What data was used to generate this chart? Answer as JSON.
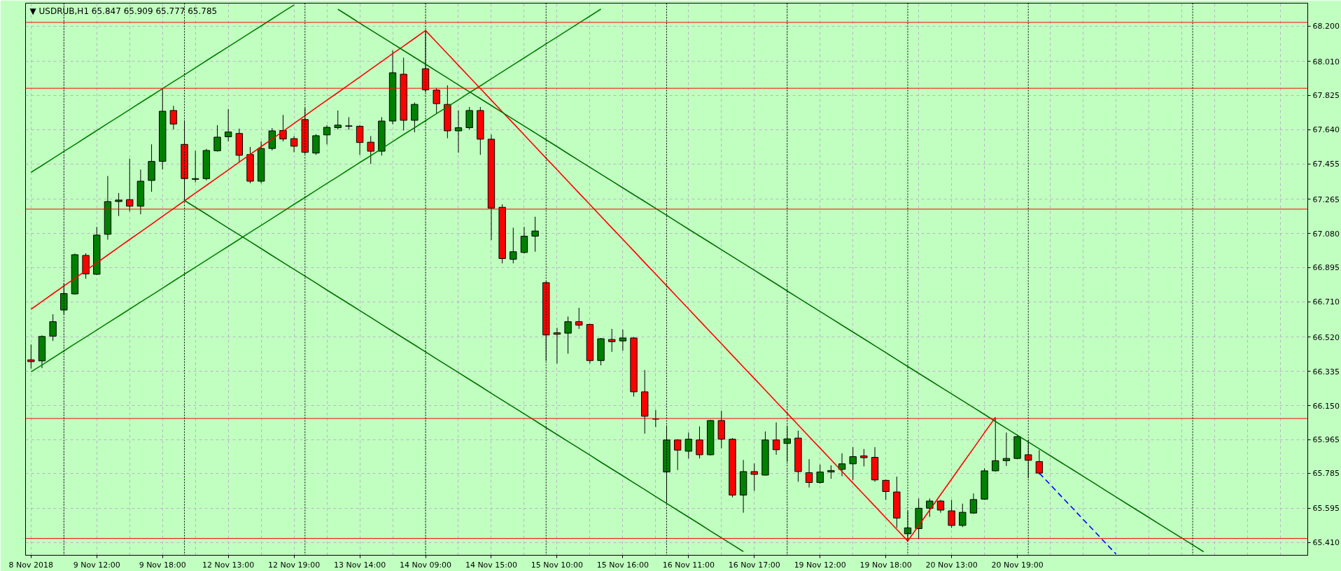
{
  "chart_data": {
    "type": "candlestick",
    "title": "▼ USDRUB,H1 65.847 65.909 65.777 65.785",
    "categories": [
      "8 Nov 2018",
      null,
      null,
      null,
      null,
      null,
      "9 Nov 12:00",
      null,
      null,
      null,
      null,
      null,
      "9 Nov 18:00",
      null,
      null,
      null,
      null,
      null,
      "12 Nov 13:00",
      null,
      null,
      null,
      null,
      null,
      "12 Nov 19:00",
      null,
      null,
      null,
      null,
      null,
      "13 Nov 14:00",
      null,
      null,
      null,
      null,
      null,
      "14 Nov 09:00",
      null,
      null,
      null,
      null,
      null,
      "14 Nov 15:00",
      null,
      null,
      null,
      null,
      null,
      "15 Nov 10:00",
      null,
      null,
      null,
      null,
      null,
      "15 Nov 16:00",
      null,
      null,
      null,
      null,
      null,
      "16 Nov 11:00",
      null,
      null,
      null,
      null,
      null,
      "16 Nov 17:00",
      null,
      null,
      null,
      null,
      null,
      "19 Nov 12:00",
      null,
      null,
      null,
      null,
      null,
      "19 Nov 18:00",
      null,
      null,
      null,
      null,
      null,
      "20 Nov 13:00",
      null,
      null,
      null,
      null,
      null,
      "20 Nov 19:00",
      null,
      null,
      null,
      null,
      null,
      null,
      null,
      null,
      null,
      null,
      null,
      null,
      null,
      null,
      null,
      null,
      null,
      null,
      null,
      null,
      null,
      null,
      null,
      null,
      null,
      null
    ],
    "ohlc": [
      [
        66.397,
        66.48,
        66.35,
        66.387
      ],
      [
        66.391,
        66.529,
        66.352,
        66.523
      ],
      [
        66.525,
        66.643,
        66.499,
        66.603
      ],
      [
        66.666,
        66.81,
        66.643,
        66.755
      ],
      [
        66.753,
        66.971,
        66.749,
        66.965
      ],
      [
        66.961,
        66.973,
        66.835,
        66.861
      ],
      [
        66.859,
        67.115,
        66.855,
        67.071
      ],
      [
        67.075,
        67.39,
        67.046,
        67.252
      ],
      [
        67.252,
        67.298,
        67.174,
        67.26
      ],
      [
        67.262,
        67.484,
        67.199,
        67.227
      ],
      [
        67.227,
        67.425,
        67.183,
        67.362
      ],
      [
        67.366,
        67.561,
        67.305,
        67.469
      ],
      [
        67.469,
        67.862,
        67.425,
        67.74
      ],
      [
        67.744,
        67.769,
        67.642,
        67.671
      ],
      [
        67.561,
        67.691,
        67.258,
        67.376
      ],
      [
        67.372,
        67.526,
        67.356,
        67.376
      ],
      [
        67.376,
        67.537,
        67.366,
        67.528
      ],
      [
        67.526,
        67.665,
        67.522,
        67.6
      ],
      [
        67.602,
        67.752,
        67.577,
        67.628
      ],
      [
        67.62,
        67.646,
        67.463,
        67.502
      ],
      [
        67.506,
        67.547,
        67.351,
        67.362
      ],
      [
        67.362,
        67.577,
        67.351,
        67.539
      ],
      [
        67.539,
        67.649,
        67.528,
        67.634
      ],
      [
        67.636,
        67.72,
        67.577,
        67.59
      ],
      [
        67.592,
        67.606,
        67.518,
        67.551
      ],
      [
        67.695,
        67.758,
        67.508,
        67.518
      ],
      [
        67.514,
        67.616,
        67.504,
        67.608
      ],
      [
        67.612,
        67.665,
        67.561,
        67.653
      ],
      [
        67.651,
        67.744,
        67.642,
        67.665
      ],
      [
        67.659,
        67.708,
        67.64,
        67.661
      ],
      [
        67.659,
        67.665,
        67.504,
        67.571
      ],
      [
        67.573,
        67.606,
        67.455,
        67.524
      ],
      [
        67.524,
        67.708,
        67.5,
        67.687
      ],
      [
        67.687,
        68.068,
        67.669,
        67.948
      ],
      [
        67.94,
        68.029,
        67.636,
        67.691
      ],
      [
        67.691,
        67.787,
        67.626,
        67.777
      ],
      [
        67.97,
        68.176,
        67.842,
        67.856
      ],
      [
        67.854,
        67.866,
        67.728,
        67.781
      ],
      [
        67.777,
        67.88,
        67.594,
        67.634
      ],
      [
        67.634,
        67.744,
        67.516,
        67.651
      ],
      [
        67.651,
        67.763,
        67.642,
        67.744
      ],
      [
        67.744,
        67.763,
        67.504,
        67.589
      ],
      [
        67.589,
        67.614,
        67.044,
        67.217
      ],
      [
        67.221,
        67.237,
        66.918,
        66.944
      ],
      [
        66.94,
        67.111,
        66.918,
        66.981
      ],
      [
        66.977,
        67.115,
        66.971,
        67.065
      ],
      [
        67.065,
        67.17,
        66.981,
        67.093
      ],
      [
        66.814,
        66.82,
        66.391,
        66.531
      ],
      [
        66.543,
        66.57,
        66.377,
        66.535
      ],
      [
        66.541,
        66.631,
        66.43,
        66.603
      ],
      [
        66.603,
        66.678,
        66.564,
        66.584
      ],
      [
        66.588,
        66.592,
        66.377,
        66.393
      ],
      [
        66.393,
        66.515,
        66.367,
        66.511
      ],
      [
        66.507,
        66.564,
        66.44,
        66.495
      ],
      [
        66.499,
        66.56,
        66.446,
        66.515
      ],
      [
        66.515,
        66.521,
        66.198,
        66.224
      ],
      [
        66.224,
        66.342,
        65.998,
        66.092
      ],
      [
        66.077,
        66.126,
        66.033,
        66.077
      ],
      [
        65.791,
        66.043,
        65.62,
        65.964
      ],
      [
        65.964,
        65.968,
        65.801,
        65.909
      ],
      [
        65.903,
        66.004,
        65.864,
        65.968
      ],
      [
        65.964,
        66.037,
        65.864,
        65.884
      ],
      [
        65.884,
        66.073,
        65.88,
        66.069
      ],
      [
        66.069,
        66.122,
        65.919,
        65.968
      ],
      [
        65.968,
        65.974,
        65.654,
        65.666
      ],
      [
        65.666,
        65.856,
        65.571,
        65.793
      ],
      [
        65.793,
        65.837,
        65.689,
        65.778
      ],
      [
        65.774,
        66.01,
        65.772,
        65.964
      ],
      [
        65.964,
        66.059,
        65.884,
        65.911
      ],
      [
        65.945,
        66.039,
        65.846,
        65.97
      ],
      [
        65.974,
        66.014,
        65.738,
        65.793
      ],
      [
        65.787,
        65.86,
        65.707,
        65.734
      ],
      [
        65.734,
        65.831,
        65.728,
        65.791
      ],
      [
        65.791,
        65.827,
        65.754,
        65.799
      ],
      [
        65.805,
        65.892,
        65.768,
        65.835
      ],
      [
        65.835,
        65.925,
        65.748,
        65.874
      ],
      [
        65.878,
        65.915,
        65.821,
        65.868
      ],
      [
        65.87,
        65.925,
        65.738,
        65.748
      ],
      [
        65.746,
        65.75,
        65.64,
        65.685
      ],
      [
        65.683,
        65.766,
        65.489,
        65.542
      ],
      [
        65.457,
        65.581,
        65.418,
        65.489
      ],
      [
        65.485,
        65.648,
        65.428,
        65.595
      ],
      [
        65.595,
        65.648,
        65.548,
        65.634
      ],
      [
        65.634,
        65.64,
        65.571,
        65.585
      ],
      [
        65.581,
        65.64,
        65.489,
        65.502
      ],
      [
        65.502,
        65.62,
        65.493,
        65.573
      ],
      [
        65.569,
        65.675,
        65.565,
        65.642
      ],
      [
        65.644,
        65.811,
        65.64,
        65.797
      ],
      [
        65.797,
        66.086,
        65.793,
        65.852
      ],
      [
        65.852,
        66.004,
        65.823,
        65.864
      ],
      [
        65.864,
        65.994,
        65.86,
        65.982
      ],
      [
        65.884,
        65.964,
        65.758,
        65.854
      ],
      [
        65.847,
        65.909,
        65.777,
        65.785
      ],
      null,
      null,
      null,
      null,
      null,
      null,
      null,
      null,
      null,
      null,
      null,
      null,
      null,
      null,
      null,
      null,
      null,
      null,
      null,
      null,
      null,
      null,
      null,
      null
    ],
    "colors": [
      "#ff0000",
      "#008000",
      "#008000",
      "#008000",
      "#008000",
      "#ff0000",
      "#008000",
      "#008000",
      "#008000",
      "#ff0000",
      "#008000",
      "#008000",
      "#008000",
      "#ff0000",
      "#ff0000",
      "#008000",
      "#008000",
      "#008000",
      "#008000",
      "#ff0000",
      "#ff0000",
      "#008000",
      "#008000",
      "#ff0000",
      "#ff0000",
      "#ff0000",
      "#008000",
      "#008000",
      "#008000",
      "#008000",
      "#ff0000",
      "#ff0000",
      "#008000",
      "#008000",
      "#ff0000",
      "#008000",
      "#ff0000",
      "#ff0000",
      "#ff0000",
      "#008000",
      "#008000",
      "#ff0000",
      "#ff0000",
      "#ff0000",
      "#008000",
      "#008000",
      "#008000",
      "#ff0000",
      "#ff0000",
      "#008000",
      "#ff0000",
      "#ff0000",
      "#008000",
      "#ff0000",
      "#008000",
      "#ff0000",
      "#ff0000",
      "#000000",
      "#008000",
      "#ff0000",
      "#008000",
      "#ff0000",
      "#008000",
      "#ff0000",
      "#ff0000",
      "#008000",
      "#ff0000",
      "#008000",
      "#ff0000",
      "#008000",
      "#ff0000",
      "#ff0000",
      "#008000",
      "#008000",
      "#008000",
      "#008000",
      "#ff0000",
      "#ff0000",
      "#ff0000",
      "#ff0000",
      "#008000",
      "#008000",
      "#008000",
      "#ff0000",
      "#ff0000",
      "#008000",
      "#008000",
      "#008000",
      "#008000",
      "#008000",
      "#008000",
      "#ff0000",
      "#ff0000",
      null,
      null,
      null,
      null,
      null,
      null,
      null,
      null,
      null,
      null,
      null,
      null,
      null,
      null,
      null,
      null,
      null,
      null,
      null,
      null,
      null,
      null,
      null,
      null
    ],
    "series": [
      {
        "type": "line",
        "color": "#008000",
        "values": [
          67.41,
          67.447,
          67.485,
          67.523,
          67.56,
          67.598,
          67.636,
          67.674,
          67.711,
          67.749,
          67.787,
          67.824,
          67.862,
          67.9,
          67.937,
          67.975,
          68.013,
          68.051,
          68.088,
          68.126,
          68.164,
          68.201,
          68.239,
          68.277,
          68.314,
          null,
          null,
          null,
          null,
          null,
          null,
          null,
          null,
          null,
          null,
          null,
          null,
          null,
          null,
          null,
          null,
          null,
          null,
          null,
          null,
          null,
          null,
          null,
          null,
          null,
          null,
          null,
          null,
          null,
          null,
          null,
          null,
          null,
          null,
          null,
          null,
          null,
          null,
          null,
          null,
          null,
          null,
          null,
          null,
          null,
          null,
          null,
          null,
          null,
          null,
          null,
          null,
          null,
          null,
          null,
          null,
          null,
          null,
          null,
          null,
          null,
          null,
          null,
          null,
          null,
          null,
          null,
          null,
          null,
          null,
          null,
          null,
          null,
          null,
          null,
          null,
          null,
          null,
          null,
          null,
          null,
          null,
          null,
          null,
          null,
          null,
          null,
          null,
          null,
          null,
          null,
          null
        ]
      },
      {
        "type": "line",
        "color": "#008000",
        "values": [
          66.332,
          66.369,
          66.407,
          66.445,
          66.483,
          66.52,
          66.558,
          66.596,
          66.633,
          66.671,
          66.709,
          66.746,
          66.784,
          66.822,
          66.86,
          66.897,
          66.935,
          66.973,
          67.01,
          67.048,
          67.086,
          67.123,
          67.161,
          67.199,
          67.237,
          67.274,
          67.312,
          67.35,
          67.387,
          67.425,
          67.463,
          67.5,
          67.538,
          67.576,
          67.614,
          67.651,
          67.689,
          67.727,
          67.764,
          67.802,
          67.84,
          67.877,
          67.915,
          67.953,
          67.991,
          68.028,
          68.066,
          68.104,
          68.141,
          68.179,
          68.217,
          68.254,
          68.292,
          null,
          null,
          null,
          null,
          null,
          null,
          null,
          null,
          null,
          null,
          null,
          null,
          null,
          null,
          null,
          null,
          null,
          null,
          null,
          null,
          null,
          null,
          null,
          null,
          null,
          null,
          null,
          null,
          null,
          null,
          null,
          null,
          null,
          null,
          null,
          null,
          null,
          null,
          null,
          null,
          null,
          null,
          null,
          null,
          null,
          null,
          null,
          null,
          null,
          null,
          null,
          null,
          null,
          null,
          null,
          null,
          null,
          null,
          null,
          null,
          null,
          null,
          null,
          null
        ]
      },
      {
        "type": "line",
        "color": "#ff0000",
        "values": [
          66.67,
          66.712,
          66.754,
          66.796,
          66.837,
          66.879,
          66.921,
          66.963,
          67.005,
          67.047,
          67.088,
          67.13,
          67.172,
          67.214,
          67.256,
          67.298,
          67.339,
          67.381,
          67.423,
          67.465,
          67.507,
          67.549,
          67.59,
          67.632,
          67.674,
          67.716,
          67.758,
          67.8,
          67.841,
          67.883,
          67.925,
          67.967,
          68.009,
          68.051,
          68.092,
          68.134,
          68.176,
          68.113,
          68.051,
          67.988,
          67.925,
          67.863,
          67.8,
          67.737,
          67.675,
          67.612,
          67.549,
          67.486,
          67.424,
          67.361,
          67.298,
          67.236,
          67.173,
          67.11,
          67.048,
          66.985,
          66.922,
          66.86,
          66.797,
          66.734,
          66.672,
          66.609,
          66.546,
          66.484,
          66.421,
          66.358,
          66.296,
          66.233,
          66.17,
          66.108,
          66.045,
          65.982,
          65.92,
          65.857,
          65.794,
          65.731,
          65.669,
          65.606,
          65.543,
          65.481,
          65.418,
          65.502,
          65.585,
          65.669,
          65.752,
          65.836,
          65.919,
          66.003,
          66.086,
          null,
          null,
          null,
          null,
          null,
          null,
          null,
          null,
          null,
          null,
          null,
          null,
          null,
          null,
          null,
          null,
          null,
          null,
          null,
          null,
          null,
          null,
          null,
          null,
          null,
          null,
          null,
          null
        ]
      },
      {
        "type": "line",
        "color": "#007000",
        "values": [
          null,
          null,
          null,
          null,
          null,
          null,
          null,
          null,
          null,
          null,
          null,
          null,
          null,
          null,
          null,
          null,
          null,
          null,
          null,
          null,
          null,
          null,
          null,
          null,
          null,
          null,
          null,
          null,
          68.291,
          68.254,
          68.216,
          68.179,
          68.142,
          68.105,
          68.068,
          68.031,
          67.994,
          67.957,
          67.92,
          67.882,
          67.845,
          67.808,
          67.771,
          67.734,
          67.697,
          67.66,
          67.623,
          67.586,
          67.549,
          67.511,
          67.474,
          67.437,
          67.4,
          67.363,
          67.326,
          67.289,
          67.252,
          67.215,
          67.178,
          67.14,
          67.103,
          67.066,
          67.029,
          66.992,
          66.955,
          66.918,
          66.881,
          66.844,
          66.807,
          66.769,
          66.732,
          66.695,
          66.658,
          66.621,
          66.584,
          66.547,
          66.51,
          66.473,
          66.436,
          66.398,
          66.361,
          66.324,
          66.287,
          66.25,
          66.213,
          66.176,
          66.139,
          66.102,
          66.064,
          66.027,
          65.99,
          65.953,
          65.916,
          65.879,
          65.842,
          65.805,
          65.768,
          65.731,
          65.693,
          65.656,
          65.619,
          65.582,
          65.545,
          65.508,
          65.471,
          65.434,
          65.397,
          65.36,
          null,
          null,
          null,
          null,
          null,
          null,
          null,
          null,
          null
        ]
      },
      {
        "type": "line",
        "color": "#007000",
        "values": [
          null,
          null,
          null,
          null,
          null,
          null,
          null,
          null,
          null,
          null,
          null,
          null,
          null,
          null,
          67.258,
          67.221,
          67.184,
          67.146,
          67.109,
          67.072,
          67.035,
          66.998,
          66.96,
          66.923,
          66.886,
          66.849,
          66.812,
          66.774,
          66.737,
          66.7,
          66.663,
          66.626,
          66.588,
          66.551,
          66.514,
          66.477,
          66.44,
          66.402,
          66.365,
          66.328,
          66.291,
          66.254,
          66.216,
          66.179,
          66.142,
          66.105,
          66.068,
          66.03,
          65.993,
          65.956,
          65.919,
          65.882,
          65.844,
          65.807,
          65.77,
          65.733,
          65.696,
          65.658,
          65.621,
          65.584,
          65.547,
          65.51,
          65.472,
          65.435,
          65.398,
          65.361,
          null,
          null,
          null,
          null,
          null,
          null,
          null,
          null,
          null,
          null,
          null,
          null,
          null,
          null,
          null,
          null,
          null,
          null,
          null,
          null,
          null,
          null,
          null,
          null,
          null,
          null,
          null,
          null,
          null,
          null,
          null,
          null,
          null,
          null,
          null,
          null,
          null,
          null,
          null,
          null,
          null,
          null,
          null,
          null,
          null,
          null,
          null,
          null,
          null,
          null,
          null
        ]
      },
      {
        "type": "line",
        "color": "#0000ff",
        "line_style": "dashed",
        "values": [
          null,
          null,
          null,
          null,
          null,
          null,
          null,
          null,
          null,
          null,
          null,
          null,
          null,
          null,
          null,
          null,
          null,
          null,
          null,
          null,
          null,
          null,
          null,
          null,
          null,
          null,
          null,
          null,
          null,
          null,
          null,
          null,
          null,
          null,
          null,
          null,
          null,
          null,
          null,
          null,
          null,
          null,
          null,
          null,
          null,
          null,
          null,
          null,
          null,
          null,
          null,
          null,
          null,
          null,
          null,
          null,
          null,
          null,
          null,
          null,
          null,
          null,
          null,
          null,
          null,
          null,
          null,
          null,
          null,
          null,
          null,
          null,
          null,
          null,
          null,
          null,
          null,
          null,
          null,
          null,
          null,
          null,
          null,
          null,
          null,
          null,
          null,
          null,
          null,
          null,
          null,
          null,
          65.785,
          65.723,
          65.66,
          65.598,
          65.535,
          65.473,
          65.41,
          65.348,
          null,
          null,
          null,
          null,
          null,
          null,
          null,
          null,
          null,
          null,
          null,
          null,
          null,
          null,
          null,
          null,
          null
        ]
      }
    ],
    "ref_lines": [
      {
        "axis": "y",
        "value": 68.22,
        "color": "#ff0000"
      },
      {
        "axis": "y",
        "value": 67.864,
        "color": "#ff0000"
      },
      {
        "axis": "y",
        "value": 67.211,
        "color": "#ff0000"
      },
      {
        "axis": "y",
        "value": 66.08,
        "color": "#ff0000"
      },
      {
        "axis": "y",
        "value": 65.432,
        "color": "#ff0000"
      }
    ],
    "ylim": [
      65.341,
      68.324
    ],
    "yticks": [
      {
        "value": 68.2,
        "label": "68.200"
      },
      {
        "value": 68.01,
        "label": "68.010"
      },
      67.825,
      {
        "value": 67.64,
        "label": "67.640"
      },
      67.455,
      67.265,
      {
        "value": 67.08,
        "label": "67.080"
      },
      66.895,
      {
        "value": 66.71,
        "label": "66.710"
      },
      {
        "value": 66.52,
        "label": "66.520"
      },
      66.335,
      {
        "value": 66.15,
        "label": "66.150"
      },
      65.965,
      65.785,
      65.595,
      {
        "value": 65.41,
        "label": "65.410"
      }
    ],
    "grid": true
  }
}
